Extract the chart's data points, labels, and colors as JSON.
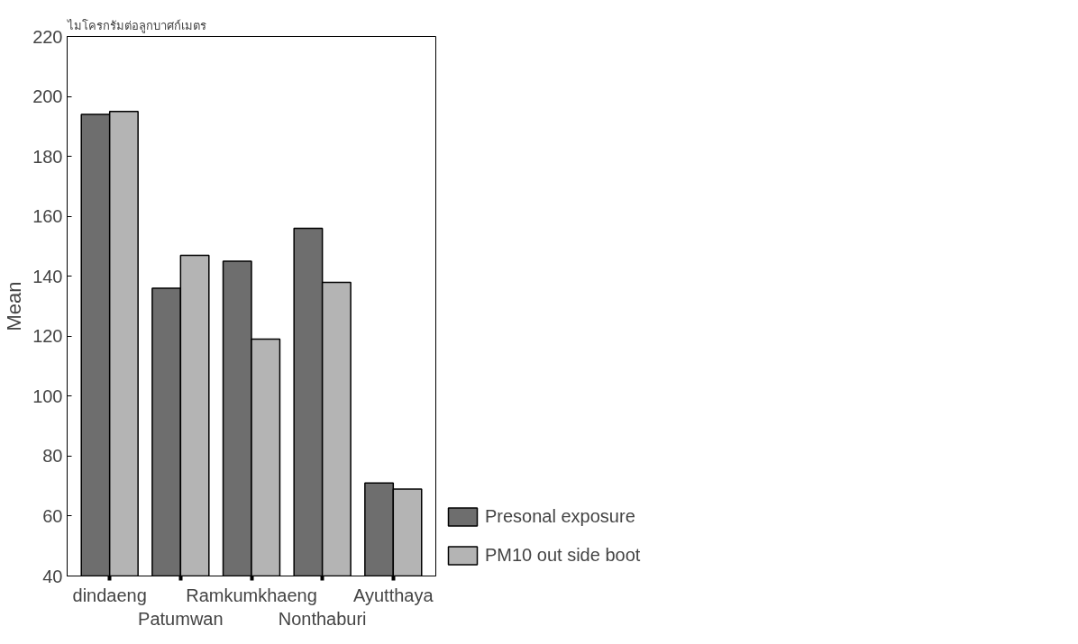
{
  "chart_data": {
    "type": "bar",
    "title": "ไมโครกรัมต่อลูกบาศก์เมตร",
    "ylabel": "Mean",
    "categories": [
      "dindaeng",
      "Patumwan",
      "Ramkumkhaeng",
      "Nonthaburi",
      "Ayutthaya"
    ],
    "series": [
      {
        "name": "Presonal exposure",
        "color": "#6e6e6e",
        "values": [
          194,
          136,
          145,
          156,
          71
        ]
      },
      {
        "name": "PM10 out side boot",
        "color": "#b4b4b4",
        "values": [
          195,
          147,
          119,
          138,
          69
        ]
      }
    ],
    "ylim": [
      40,
      220
    ],
    "yticks": [
      40,
      60,
      80,
      100,
      120,
      140,
      160,
      180,
      200,
      220
    ],
    "grid": false,
    "legend": "bottom right"
  }
}
